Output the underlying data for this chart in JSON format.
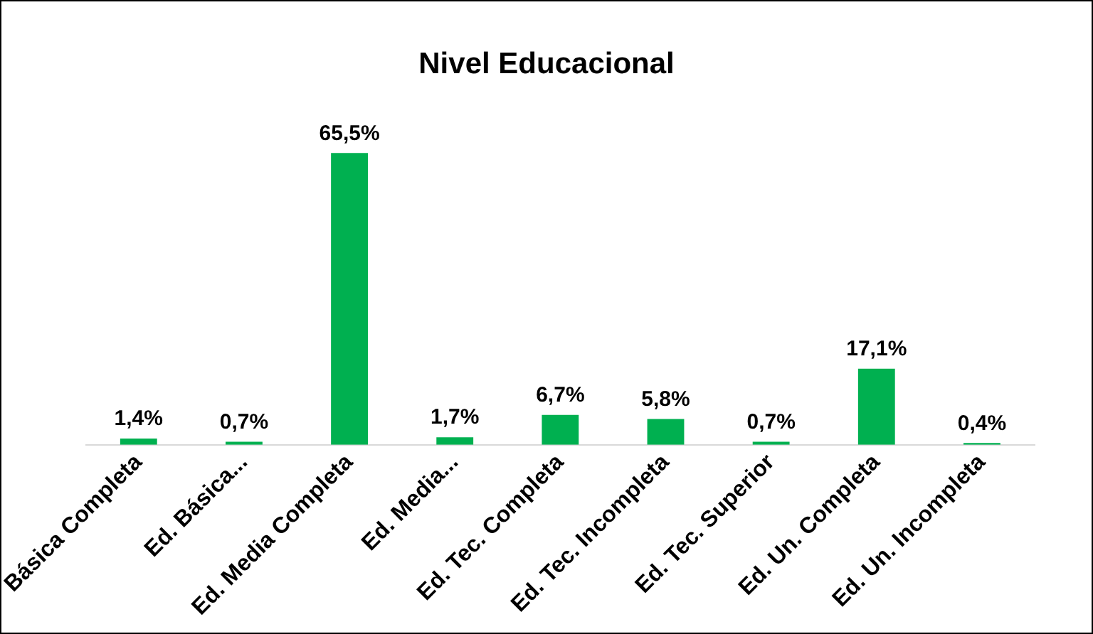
{
  "chart_data": {
    "type": "bar",
    "title": "Nivel Educacional",
    "categories": [
      "Básica Completa",
      "Ed. Básica...",
      "Ed. Media Completa",
      "Ed. Media...",
      "Ed. Tec. Completa",
      "Ed. Tec. Incompleta",
      "Ed. Tec. Superior",
      "Ed. Un. Completa",
      "Ed. Un. Incompleta"
    ],
    "values": [
      1.4,
      0.7,
      65.5,
      1.7,
      6.7,
      5.8,
      0.7,
      17.1,
      0.4
    ],
    "value_labels": [
      "1,4%",
      "0,7%",
      "65,5%",
      "1,7%",
      "6,7%",
      "5,8%",
      "0,7%",
      "17,1%",
      "0,4%"
    ],
    "color": "#00b050",
    "grid": false,
    "legend": false,
    "tick_labels": "x"
  }
}
